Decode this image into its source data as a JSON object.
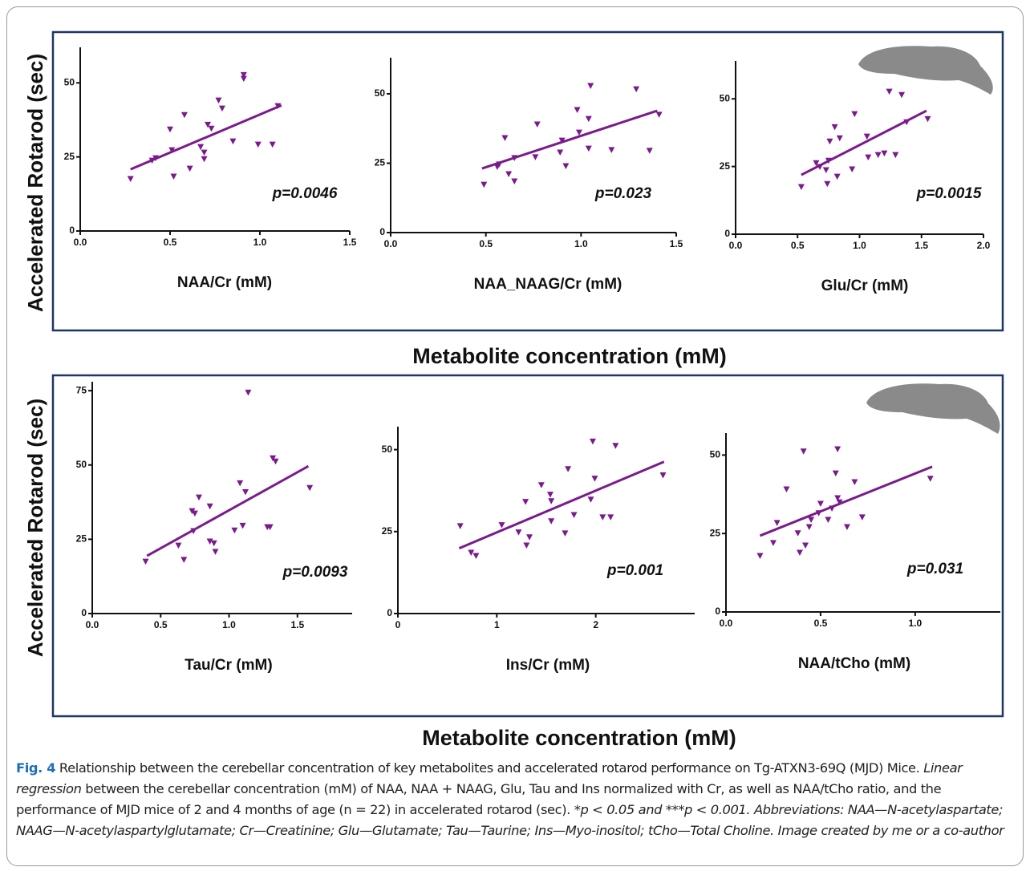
{
  "rows": [
    {
      "ylabel": "Accelerated Rotarod (sec)",
      "xlabel": "Metabolite concentration (mM)"
    },
    {
      "ylabel": "Accelerated Rotarod (sec)",
      "xlabel": "Metabolite concentration (mM)"
    }
  ],
  "chart_data": [
    {
      "type": "scatter",
      "xlabel": "NAA/Cr (mM)",
      "annotation": "p=0.0046",
      "color": "#7b1a8c",
      "x": [
        0.28,
        0.4,
        0.42,
        0.5,
        0.51,
        0.52,
        0.58,
        0.61,
        0.77,
        0.67,
        0.69,
        0.69,
        0.71,
        0.73,
        0.79,
        0.85,
        0.91,
        0.91,
        0.99,
        1.07,
        1.1
      ],
      "y": [
        17.6,
        23.8,
        24.6,
        34.3,
        27.3,
        18.4,
        39.2,
        21.1,
        44.1,
        28.4,
        26.5,
        24.3,
        35.9,
        34.6,
        41.4,
        30.3,
        52.7,
        51.4,
        29.2,
        29.2,
        42.2
      ],
      "fit_x": [
        0.28,
        1.12
      ],
      "fit_y": [
        20.8,
        42.4
      ],
      "xlim": [
        0,
        1.5
      ],
      "ylim": [
        0,
        62
      ],
      "xticks": [
        {
          "value": 0,
          "label": "0.0"
        },
        0.5,
        {
          "value": 1,
          "label": "1.0"
        },
        1.5
      ],
      "yticks": [
        0,
        25,
        50
      ]
    },
    {
      "type": "scatter",
      "xlabel": "NAA_NAAG/Cr (mM)",
      "annotation": "p=0.023",
      "color": "#7b1a8c",
      "x": [
        0.49,
        0.56,
        0.57,
        0.6,
        0.62,
        0.65,
        0.65,
        0.77,
        0.76,
        0.89,
        0.9,
        0.92,
        0.98,
        0.99,
        1.04,
        1.04,
        1.05,
        1.16,
        1.29,
        1.36,
        1.41
      ],
      "y": [
        17.3,
        23.7,
        24.6,
        34.1,
        21.1,
        18.5,
        26.9,
        39.0,
        27.2,
        28.9,
        33.2,
        24.0,
        44.2,
        36.1,
        41.0,
        30.3,
        52.9,
        29.8,
        51.7,
        29.5,
        42.5
      ],
      "fit_x": [
        0.48,
        1.4
      ],
      "fit_y": [
        23.1,
        43.9
      ],
      "xlim": [
        0,
        1.5
      ],
      "ylim": [
        0,
        63
      ],
      "xticks": [
        {
          "value": 0,
          "label": "0.0"
        },
        0.5,
        {
          "value": 1,
          "label": "1.0"
        },
        1.5
      ],
      "yticks": [
        0,
        25,
        50
      ]
    },
    {
      "type": "scatter",
      "xlabel": "Glu/Cr (mM)",
      "annotation": "p=0.0015",
      "color": "#7b1a8c",
      "x": [
        0.53,
        0.65,
        0.68,
        0.73,
        0.74,
        0.75,
        0.76,
        0.8,
        0.82,
        0.84,
        0.94,
        0.96,
        1.06,
        1.07,
        1.15,
        1.2,
        1.24,
        1.29,
        1.34,
        1.38,
        1.55
      ],
      "y": [
        17.5,
        26.3,
        24.9,
        23.7,
        18.6,
        27.2,
        34.3,
        39.6,
        21.3,
        35.5,
        24.0,
        44.4,
        36.1,
        28.4,
        29.3,
        29.9,
        52.7,
        29.3,
        51.5,
        41.4,
        42.6
      ],
      "fit_x": [
        0.53,
        1.54
      ],
      "fit_y": [
        21.9,
        45.6
      ],
      "xlim": [
        0,
        2
      ],
      "ylim": [
        0,
        64
      ],
      "xticks": [
        {
          "value": 0,
          "label": "0.0"
        },
        0.5,
        {
          "value": 1,
          "label": "1.0"
        },
        1.5,
        {
          "value": 2,
          "label": "2.0"
        }
      ],
      "yticks": [
        0,
        25,
        50
      ]
    },
    {
      "type": "scatter",
      "xlabel": "Tau/Cr (mM)",
      "annotation": "p=0.0093",
      "color": "#7b1a8c",
      "x": [
        0.39,
        0.63,
        0.67,
        0.74,
        0.73,
        0.75,
        0.78,
        0.86,
        0.86,
        0.89,
        0.9,
        1.04,
        1.08,
        1.1,
        1.12,
        1.14,
        1.28,
        1.3,
        1.32,
        1.34,
        1.59
      ],
      "y": [
        17.5,
        22.9,
        18.1,
        27.8,
        34.5,
        33.7,
        39.1,
        36.1,
        24.3,
        23.7,
        20.8,
        28.0,
        43.9,
        29.6,
        40.9,
        74.4,
        29.1,
        29.1,
        52.3,
        51.2,
        42.3
      ],
      "fit_x": [
        0.4,
        1.58
      ],
      "fit_y": [
        19.4,
        49.6
      ],
      "xlim": [
        0,
        1.9
      ],
      "ylim": [
        0,
        78
      ],
      "xticks": [
        {
          "value": 0,
          "label": "0.0"
        },
        0.5,
        {
          "value": 1,
          "label": "1.0"
        },
        1.5
      ],
      "yticks": [
        0,
        25,
        50,
        75
      ]
    },
    {
      "type": "scatter",
      "xlabel": "Ins/Cr (mM)",
      "annotation": "p=0.001",
      "color": "#7b1a8c",
      "x": [
        0.63,
        0.74,
        0.79,
        1.05,
        1.22,
        1.29,
        1.3,
        1.33,
        1.45,
        1.54,
        1.55,
        1.55,
        1.69,
        1.72,
        1.78,
        1.95,
        1.97,
        1.99,
        2.07,
        2.15,
        2.2,
        2.68
      ],
      "y": [
        26.7,
        18.6,
        17.6,
        27.0,
        24.8,
        34.1,
        20.8,
        23.3,
        39.2,
        36.3,
        34.3,
        28.2,
        24.5,
        44.1,
        30.1,
        34.8,
        52.5,
        41.2,
        29.4,
        29.4,
        51.2,
        42.2
      ],
      "fit_x": [
        0.62,
        2.69
      ],
      "fit_y": [
        19.9,
        46.3
      ],
      "xlim": [
        0,
        3
      ],
      "ylim": [
        0,
        57
      ],
      "xticks": [
        0,
        1,
        2
      ],
      "yticks": [
        0,
        25,
        50
      ]
    },
    {
      "type": "scatter",
      "xlabel": "NAA/tCho (mM)",
      "annotation": "p=0.031",
      "color": "#7b1a8c",
      "x": [
        0.18,
        0.25,
        0.27,
        0.32,
        0.38,
        0.39,
        0.41,
        0.42,
        0.44,
        0.45,
        0.49,
        0.5,
        0.54,
        0.56,
        0.58,
        0.59,
        0.59,
        0.6,
        0.64,
        0.68,
        0.72,
        1.08
      ],
      "y": [
        17.9,
        22.0,
        28.4,
        39.1,
        25.1,
        18.9,
        51.2,
        21.2,
        27.1,
        29.4,
        31.5,
        34.5,
        29.4,
        33.0,
        44.2,
        51.9,
        36.3,
        35.0,
        27.1,
        41.4,
        30.2,
        42.5
      ],
      "fit_x": [
        0.18,
        1.09
      ],
      "fit_y": [
        24.3,
        46.3
      ],
      "xlim": [
        0,
        1.45
      ],
      "ylim": [
        0,
        57
      ],
      "xticks": [
        {
          "value": 0,
          "label": "0.0"
        },
        0.5,
        {
          "value": 1,
          "label": "1.0"
        }
      ],
      "yticks": [
        0,
        25,
        50
      ]
    }
  ],
  "caption": [
    {
      "text": "Fig. 4",
      "style": "fig"
    },
    {
      "text": "  Relationship between the cerebellar concentration of key metabolites and accelerated rotarod performance on Tg-ATXN3-69Q (MJD) Mice. ",
      "style": "plain"
    },
    {
      "text": "Linear regression",
      "style": "italic"
    },
    {
      "text": " between the cerebellar concentration (mM) of NAA, NAA + NAAG, Glu, Tau and Ins normalized with Cr, as well as NAA/tCho ratio, and the performance of MJD mice of 2 and 4 months of age (n = 22) in accelerated rotarod (sec). ",
      "style": "plain"
    },
    {
      "text": "*p < 0.05 and ***p < 0.001. Abbreviations: NAA—N-acetylaspartate; NAAG—N-acetylaspartylglutamate; Cr—Creatinine; Glu—Glutamate; Tau—Taurine; Ins—Myo-inositol; tCho—Total Choline. Image created by me or a co-author",
      "style": "italic"
    }
  ]
}
